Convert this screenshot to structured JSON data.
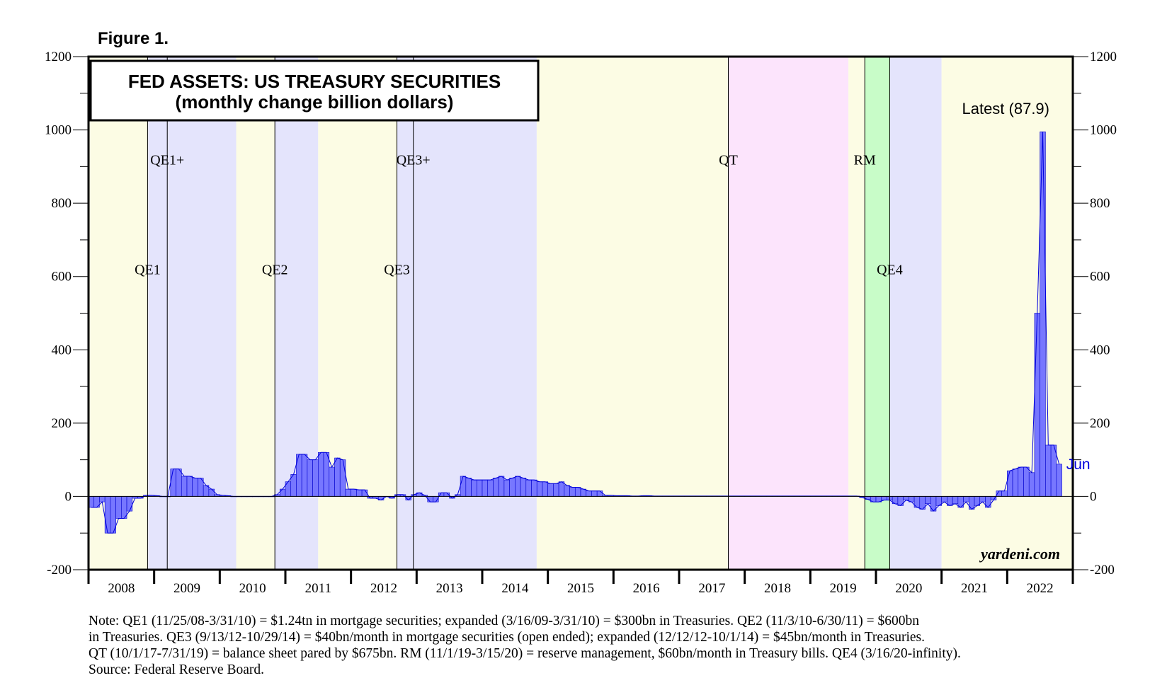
{
  "figure_label": "Figure 1.",
  "chart_data": {
    "type": "bar",
    "title_line1": "FED ASSETS: US TREASURY SECURITIES",
    "title_line2": "(monthly change billion dollars)",
    "latest_label": "Latest (87.9)",
    "end_label": "Jun",
    "watermark": "yardeni.com",
    "ylim": [
      -200,
      1200
    ],
    "y_ticks": [
      "-200",
      "0",
      "200",
      "400",
      "600",
      "800",
      "1000",
      "1200"
    ],
    "x_range": [
      2008,
      2023
    ],
    "years": [
      "2008",
      "2009",
      "2010",
      "2011",
      "2012",
      "2013",
      "2014",
      "2015",
      "2016",
      "2017",
      "2018",
      "2019",
      "2020",
      "2021",
      "2022"
    ],
    "bar_color": "#7777ff",
    "regimes": [
      {
        "start": 2008.0,
        "end": 2008.9,
        "color": "#fcfce4"
      },
      {
        "start": 2008.9,
        "end": 2010.25,
        "color": "#e4e4fc"
      },
      {
        "start": 2010.25,
        "end": 2010.84,
        "color": "#fcfce4"
      },
      {
        "start": 2010.84,
        "end": 2011.5,
        "color": "#e4e4fc"
      },
      {
        "start": 2011.5,
        "end": 2012.7,
        "color": "#fcfce4"
      },
      {
        "start": 2012.7,
        "end": 2014.83,
        "color": "#e4e4fc"
      },
      {
        "start": 2014.83,
        "end": 2017.75,
        "color": "#fcfce4"
      },
      {
        "start": 2017.75,
        "end": 2019.58,
        "color": "#fce4fc"
      },
      {
        "start": 2019.58,
        "end": 2019.83,
        "color": "#fcfce4"
      },
      {
        "start": 2019.83,
        "end": 2020.21,
        "color": "#c8fcc8"
      },
      {
        "start": 2020.21,
        "end": 2021.0,
        "color": "#e4e4fc"
      },
      {
        "start": 2021.0,
        "end": 2023.0,
        "color": "#fcfce4"
      }
    ],
    "event_lines": [
      {
        "label": "QE1",
        "x": 2008.9,
        "level": 600
      },
      {
        "label": "QE1+",
        "x": 2009.2,
        "level": 900
      },
      {
        "label": "QE2",
        "x": 2010.84,
        "level": 600
      },
      {
        "label": "QE3",
        "x": 2012.7,
        "level": 600
      },
      {
        "label": "QE3+",
        "x": 2012.95,
        "level": 900
      },
      {
        "label": "QT",
        "x": 2017.75,
        "level": 900
      },
      {
        "label": "RM",
        "x": 2019.83,
        "level": 900
      },
      {
        "label": "QE4",
        "x": 2020.21,
        "level": 600
      }
    ],
    "series": [
      {
        "name": "Monthly change",
        "start": 2008.0,
        "step_months": 1,
        "values": [
          -30,
          -30,
          -15,
          -100,
          -100,
          -60,
          -60,
          -40,
          -5,
          -5,
          3,
          3,
          2,
          0,
          0,
          75,
          75,
          55,
          55,
          50,
          50,
          30,
          20,
          5,
          3,
          2,
          0,
          0,
          0,
          0,
          0,
          0,
          0,
          0,
          5,
          20,
          40,
          60,
          115,
          115,
          100,
          100,
          120,
          120,
          80,
          105,
          100,
          20,
          20,
          18,
          18,
          -5,
          -5,
          -10,
          0,
          -5,
          5,
          5,
          -10,
          5,
          10,
          3,
          -15,
          -15,
          10,
          10,
          -5,
          5,
          55,
          50,
          45,
          45,
          45,
          45,
          50,
          55,
          45,
          50,
          55,
          50,
          45,
          45,
          40,
          40,
          35,
          35,
          40,
          30,
          25,
          25,
          20,
          15,
          15,
          15,
          3,
          3,
          2,
          2,
          2,
          1,
          1,
          2,
          2,
          1,
          1,
          1,
          1,
          1,
          1,
          1,
          1,
          1,
          1,
          1,
          1,
          1,
          1,
          1,
          1,
          1,
          1,
          1,
          1,
          1,
          1,
          1,
          1,
          1,
          1,
          1,
          1,
          1,
          1,
          1,
          1,
          1,
          1,
          1,
          1,
          1,
          1,
          -3,
          -8,
          -15,
          -15,
          -10,
          -10,
          -20,
          -25,
          -10,
          -15,
          -30,
          -35,
          -20,
          -40,
          -25,
          -15,
          -25,
          -20,
          -30,
          -15,
          -35,
          -25,
          -15,
          -30,
          -10,
          15,
          15,
          70,
          75,
          80,
          80,
          65,
          500,
          995,
          140,
          140,
          88
        ]
      }
    ]
  },
  "note": {
    "line1": "Note: QE1 (11/25/08-3/31/10) = $1.24tn in mortgage securities; expanded (3/16/09-3/31/10) = $300bn in Treasuries. QE2 (11/3/10-6/30/11) = $600bn",
    "line2": "in Treasuries. QE3 (9/13/12-10/29/14) = $40bn/month in mortgage securities (open ended); expanded (12/12/12-10/1/14) = $45bn/month in Treasuries.",
    "line3": "QT (10/1/17-7/31/19) = balance sheet pared by $675bn. RM (11/1/19-3/15/20) = reserve management, $60bn/month in Treasury bills. QE4 (3/16/20-infinity).",
    "line4": "Source: Federal Reserve Board."
  }
}
